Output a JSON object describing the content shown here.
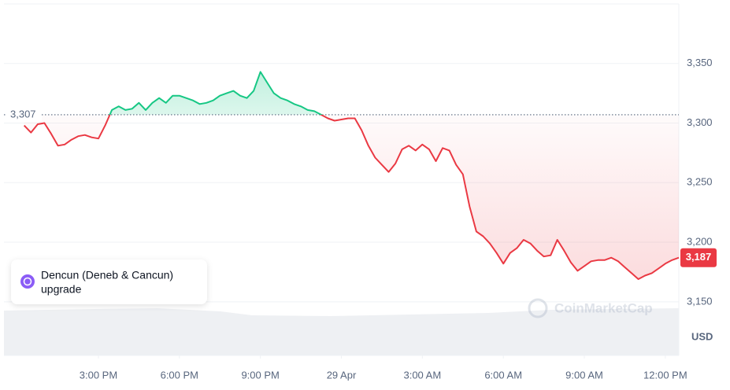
{
  "chart_data": {
    "type": "line",
    "x": [
      12.25,
      12.5,
      12.75,
      13,
      13.25,
      13.5,
      13.75,
      14,
      14.25,
      14.5,
      14.75,
      15,
      15.25,
      15.5,
      15.75,
      16,
      16.25,
      16.5,
      16.75,
      17,
      17.25,
      17.5,
      17.75,
      18,
      18.25,
      18.5,
      18.75,
      19,
      19.25,
      19.5,
      19.75,
      20,
      20.25,
      20.5,
      20.75,
      21,
      21.25,
      21.5,
      21.75,
      22,
      22.25,
      22.5,
      22.75,
      23,
      23.25,
      23.5,
      23.75,
      24,
      24.25,
      24.5,
      24.75,
      25,
      25.25,
      25.5,
      25.75,
      26,
      26.25,
      26.5,
      26.75,
      27,
      27.25,
      27.5,
      27.75,
      28,
      28.25,
      28.5,
      28.75,
      29,
      29.25,
      29.5,
      29.75,
      30,
      30.25,
      30.5,
      30.75,
      31,
      31.25,
      31.5,
      31.75,
      32,
      32.25,
      32.5,
      32.75,
      33,
      33.25,
      33.5,
      33.75,
      34,
      34.25,
      34.5,
      34.75,
      35,
      35.25,
      35.5,
      35.75,
      36,
      36.25,
      36.5
    ],
    "values": [
      3298,
      3292,
      3299,
      3300,
      3291,
      3281,
      3282,
      3286,
      3289,
      3290,
      3288,
      3287,
      3298,
      3311,
      3314,
      3311,
      3312,
      3317,
      3311,
      3317,
      3321,
      3317,
      3323,
      3323,
      3321,
      3319,
      3316,
      3317,
      3319,
      3323,
      3325,
      3327,
      3323,
      3321,
      3327,
      3343,
      3334,
      3325,
      3321,
      3319,
      3316,
      3314,
      3311,
      3310,
      3307,
      3304,
      3302,
      3303,
      3304,
      3304,
      3294,
      3281,
      3271,
      3265,
      3259,
      3266,
      3278,
      3281,
      3277,
      3282,
      3278,
      3268,
      3279,
      3277,
      3265,
      3257,
      3230,
      3209,
      3205,
      3199,
      3191,
      3182,
      3191,
      3195,
      3202,
      3199,
      3193,
      3188,
      3189,
      3202,
      3193,
      3183,
      3176,
      3180,
      3184,
      3185,
      3185,
      3187,
      3184,
      3179,
      3174,
      3169,
      3172,
      3174,
      3178,
      3182,
      3185,
      3187
    ],
    "up_color": "#16c784",
    "down_color": "#ea3943",
    "baseline": {
      "value": 3307,
      "label": "3,307"
    },
    "last_label": "3,187",
    "xlim": [
      11.5,
      36.5
    ],
    "ylim": [
      3105,
      3400
    ],
    "xticks": [
      {
        "value": 15,
        "label": "3:00 PM"
      },
      {
        "value": 18,
        "label": "6:00 PM"
      },
      {
        "value": 21,
        "label": "9:00 PM"
      },
      {
        "value": 24,
        "label": "29 Apr"
      },
      {
        "value": 27,
        "label": "3:00 AM"
      },
      {
        "value": 30,
        "label": "6:00 AM"
      },
      {
        "value": 33,
        "label": "9:00 AM"
      },
      {
        "value": 36,
        "label": "12:00 PM"
      }
    ],
    "yticks": [
      {
        "value": 3150,
        "label": "3,150"
      },
      {
        "value": 3200,
        "label": "3,200"
      },
      {
        "value": 3250,
        "label": "3,250"
      },
      {
        "value": 3300,
        "label": "3,300"
      },
      {
        "value": 3350,
        "label": "3,350"
      }
    ],
    "grid": true,
    "currency": "USD",
    "watermark": "CoinMarketCap",
    "annotation": [
      "Dencun (Deneb & Cancun)",
      "upgrade"
    ]
  }
}
